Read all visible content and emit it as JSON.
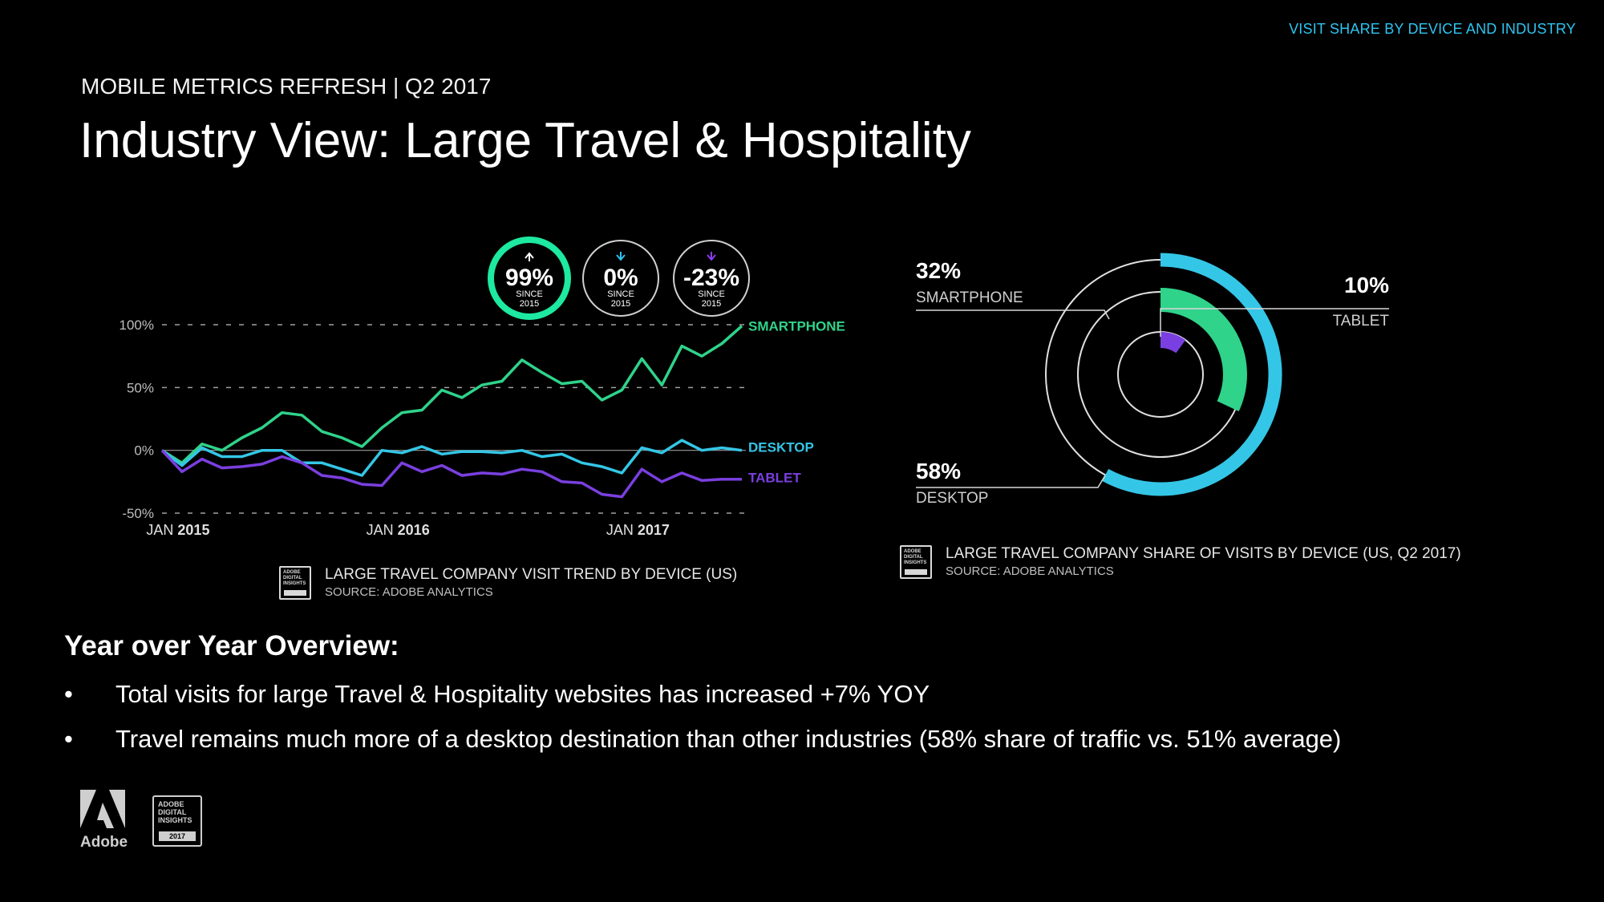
{
  "header": {
    "section_tag": "VISIT SHARE BY DEVICE AND INDUSTRY",
    "subtitle": "MOBILE METRICS REFRESH | Q2 2017",
    "title": "Industry View: Large Travel & Hospitality"
  },
  "badges": [
    {
      "value": "99%",
      "line1": "SINCE",
      "line2": "2015",
      "arrow": "up",
      "color": "#1de9a0"
    },
    {
      "value": "0%",
      "line1": "SINCE",
      "line2": "2015",
      "arrow": "down",
      "color": "#2ec4f0"
    },
    {
      "value": "-23%",
      "line1": "SINCE",
      "line2": "2015",
      "arrow": "down",
      "color": "#8a3cf0"
    }
  ],
  "colors": {
    "smartphone": "#2fd38a",
    "desktop": "#34c6e6",
    "tablet": "#7a3fe0",
    "accent": "#2ec4f0"
  },
  "chart_data": [
    {
      "type": "line",
      "x_ticks": [
        {
          "label": "JAN",
          "year": "2015"
        },
        {
          "label": "JAN",
          "year": "2016"
        },
        {
          "label": "JAN",
          "year": "2017"
        }
      ],
      "y_ticks": [
        "100%",
        "50%",
        "0%",
        "-50%"
      ],
      "ylim": [
        -50,
        100
      ],
      "x_count": 30,
      "grid": "dashed at tick marks",
      "series": [
        {
          "name": "SMARTPHONE",
          "color_key": "smartphone",
          "values": [
            0,
            -10,
            5,
            0,
            10,
            18,
            30,
            28,
            15,
            10,
            3,
            18,
            30,
            32,
            48,
            42,
            52,
            55,
            72,
            62,
            53,
            55,
            40,
            48,
            73,
            52,
            83,
            75,
            85,
            99
          ]
        },
        {
          "name": "DESKTOP",
          "color_key": "desktop",
          "values": [
            0,
            -12,
            2,
            -5,
            -5,
            0,
            0,
            -10,
            -10,
            -15,
            -20,
            0,
            -2,
            3,
            -3,
            -1,
            -1,
            -2,
            0,
            -5,
            -3,
            -10,
            -13,
            -18,
            2,
            -2,
            8,
            0,
            2,
            0
          ]
        },
        {
          "name": "TABLET",
          "color_key": "tablet",
          "values": [
            0,
            -17,
            -7,
            -14,
            -13,
            -11,
            -5,
            -10,
            -20,
            -22,
            -27,
            -28,
            -10,
            -17,
            -12,
            -20,
            -18,
            -19,
            -15,
            -17,
            -25,
            -26,
            -35,
            -37,
            -15,
            -25,
            -18,
            -24,
            -23,
            -23
          ]
        }
      ],
      "caption": {
        "title": "LARGE TRAVEL COMPANY VISIT TREND BY DEVICE (US)",
        "source": "SOURCE: ADOBE ANALYTICS"
      }
    },
    {
      "type": "pie",
      "style": "concentric rings",
      "slices": [
        {
          "label": "SMARTPHONE",
          "value": 32,
          "display": "32%",
          "color_key": "smartphone"
        },
        {
          "label": "DESKTOP",
          "value": 58,
          "display": "58%",
          "color_key": "desktop"
        },
        {
          "label": "TABLET",
          "value": 10,
          "display": "10%",
          "color_key": "tablet"
        }
      ],
      "caption": {
        "title": "LARGE TRAVEL COMPANY SHARE OF VISITS BY DEVICE (US, Q2 2017)",
        "source": "SOURCE: ADOBE ANALYTICS"
      }
    }
  ],
  "overview": {
    "title": "Year over Year Overview:",
    "bullet_char": "•",
    "bullets": [
      "Total visits for large Travel & Hospitality websites has increased +7% YOY",
      "Travel remains much more of a desktop destination than other industries (58% share of traffic vs. 51% average)"
    ]
  },
  "footer": {
    "brand": "Adobe",
    "logo_icon": "adobe-logo-icon",
    "badge_lines": [
      "ADOBE",
      "DIGITAL",
      "INSIGHTS"
    ],
    "badge_year": "2017",
    "caption_icon_lines": [
      "ADOBE",
      "DIGITAL",
      "INSIGHTS"
    ],
    "caption_icon_year": "2017"
  }
}
